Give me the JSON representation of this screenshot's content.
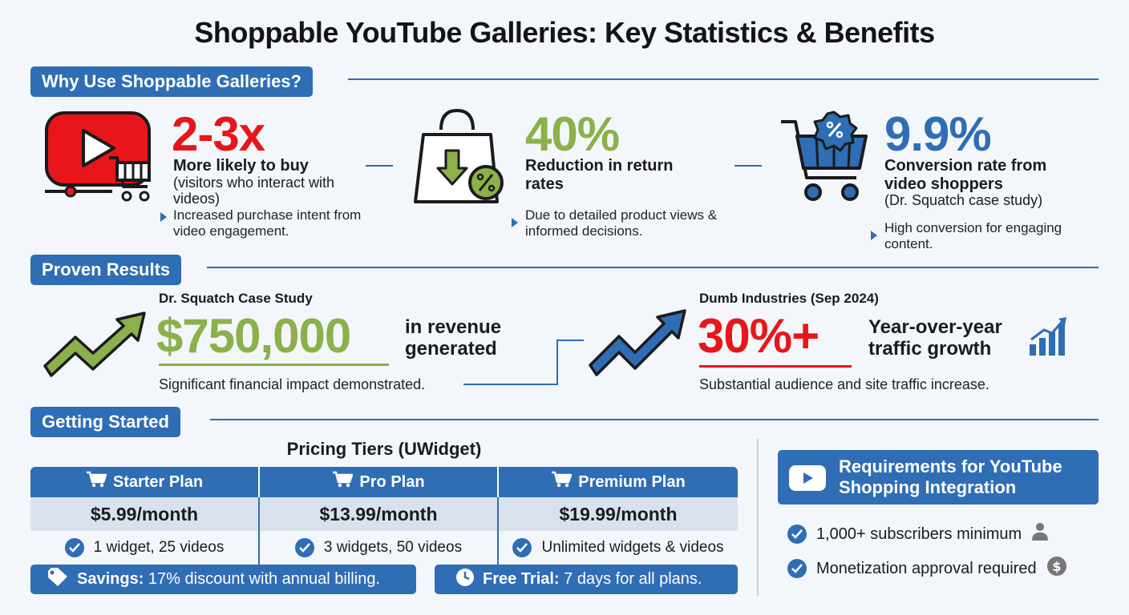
{
  "title": "Shoppable YouTube Galleries: Key Statistics & Benefits",
  "sections": {
    "why": "Why Use Shoppable Galleries?",
    "results": "Proven Results",
    "started": "Getting Started"
  },
  "stats": [
    {
      "value": "2-3x",
      "label": "More likely to buy",
      "sub": "(visitors who interact with videos)",
      "bullet": "Increased purchase intent from video engagement.",
      "icon": "youtube-cart-icon"
    },
    {
      "value": "40%",
      "label": "Reduction in return rates",
      "sub": "",
      "bullet": "Due to detailed product views & informed decisions.",
      "icon": "shopping-bag-percent-icon"
    },
    {
      "value": "9.9%",
      "label": "Conversion rate from video shoppers",
      "sub": "(Dr. Squatch case study)",
      "bullet": "High conversion for engaging content.",
      "icon": "cart-percent-badge-icon"
    }
  ],
  "results": [
    {
      "heading": "Dr. Squatch Case Study",
      "value": "$750,000",
      "label": "in revenue generated",
      "note": "Significant financial impact demonstrated."
    },
    {
      "heading": "Dumb Industries (Sep 2024)",
      "value": "30%+",
      "label": "Year-over-year traffic growth",
      "note": "Substantial audience and site traffic increase."
    }
  ],
  "pricing": {
    "title": "Pricing Tiers (UWidget)",
    "plans": [
      {
        "name": "Starter Plan",
        "price": "$5.99/month",
        "feature": "1 widget, 25 videos"
      },
      {
        "name": "Pro Plan",
        "price": "$13.99/month",
        "feature": "3 widgets, 50 videos"
      },
      {
        "name": "Premium Plan",
        "price": "$19.99/month",
        "feature": "Unlimited widgets & videos"
      }
    ],
    "savings_label": "Savings:",
    "savings_text": "17% discount with annual billing.",
    "trial_label": "Free Trial:",
    "trial_text": "7 days for all plans."
  },
  "requirements": {
    "title": "Requirements for YouTube Shopping Integration",
    "items": [
      {
        "text": "1,000+ subscribers minimum",
        "icon": "person-icon"
      },
      {
        "text": "Monetization approval required",
        "icon": "dollar-coin-icon"
      }
    ]
  },
  "colors": {
    "accent": "#2f6db5",
    "red": "#e8161b",
    "green": "#8cb04a",
    "price_bg": "#d9e2ec",
    "background": "#f3f6fa"
  }
}
